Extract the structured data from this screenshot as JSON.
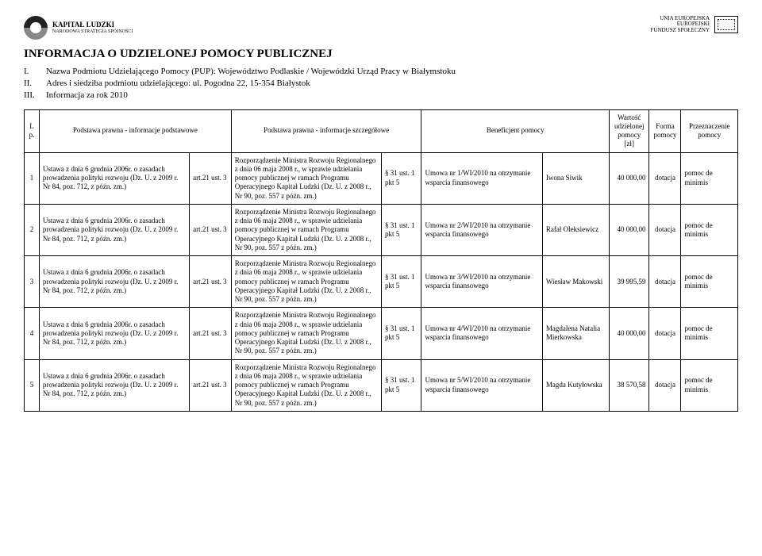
{
  "logos": {
    "left_line1": "KAPITAŁ LUDZKI",
    "left_line2": "NARODOWA STRATEGIA SPÓJNOŚCI",
    "right_line1": "UNIA EUROPEJSKA",
    "right_line2": "EUROPEJSKI",
    "right_line3": "FUNDUSZ SPOŁECZNY"
  },
  "title": "INFORMACJA O UDZIELONEJ POMOCY PUBLICZNEJ",
  "intro": [
    {
      "num": "I.",
      "text": "Nazwa Podmiotu Udzielającego Pomocy (PUP): Województwo Podlaskie / Wojewódzki Urząd Pracy w Białymstoku"
    },
    {
      "num": "II.",
      "text": "Adres i siedziba podmiotu udzielającego: ul. Pogodna 22, 15-354 Białystok"
    },
    {
      "num": "III.",
      "text": "Informacja za rok 2010"
    }
  ],
  "headers": {
    "lp": "Lp.",
    "basic": "Podstawa prawna - informacje podstawowe",
    "detail": "Podstawa prawna - informacje szczegółowe",
    "benef": "Beneficjent pomocy",
    "value": "Wartość udzielonej pomocy [zł]",
    "form": "Forma pomocy",
    "dest": "Przeznaczenie pomocy"
  },
  "common": {
    "law_basic": "Ustawa z dnia 6 grudnia 2006r. o zasadach prowadzenia polityki rozwoju (Dz. U. z 2009 r. Nr 84, poz. 712, z późn. zm.)",
    "art": "art.21 ust. 3",
    "law_detail": "Rozporządzenie Ministra Rozwoju Regionalnego z dnia 06 maja 2008 r., w sprawie udzielania pomocy publicznej w ramach Programu Operacyjnego Kapitał Ludzki (Dz. U. z 2008 r., Nr 90, poz. 557 z późn. zm.)",
    "pkt": "§ 31 ust. 1 pkt 5",
    "form": "dotacja",
    "dest": "pomoc de minimis"
  },
  "rows": [
    {
      "lp": "1",
      "benef": "Umowa nr 1/WI/2010 na otrzymanie wsparcia finansowego",
      "name": "Iwona Siwik",
      "val": "40 000,00"
    },
    {
      "lp": "2",
      "benef": "Umowa nr 2/WI/2010 na otrzymanie wsparcia finansowego",
      "name": "Rafał Oleksiewicz",
      "val": "40 000,00"
    },
    {
      "lp": "3",
      "benef": "Umowa nr 3/WI/2010 na otrzymanie wsparcia finansowego",
      "name": "Wiesław Makowski",
      "val": "39 995,59"
    },
    {
      "lp": "4",
      "benef": "Umowa nr 4/WI/2010 na otrzymanie wsparcia finansowego",
      "name": "Magdalena Natalia Mierkowska",
      "val": "40 000,00"
    },
    {
      "lp": "5",
      "benef": "Umowa nr 5/WI/2010 na otrzymanie wsparcia finansowego",
      "name": "Magda Kutyłowska",
      "val": "38 570,58"
    }
  ]
}
